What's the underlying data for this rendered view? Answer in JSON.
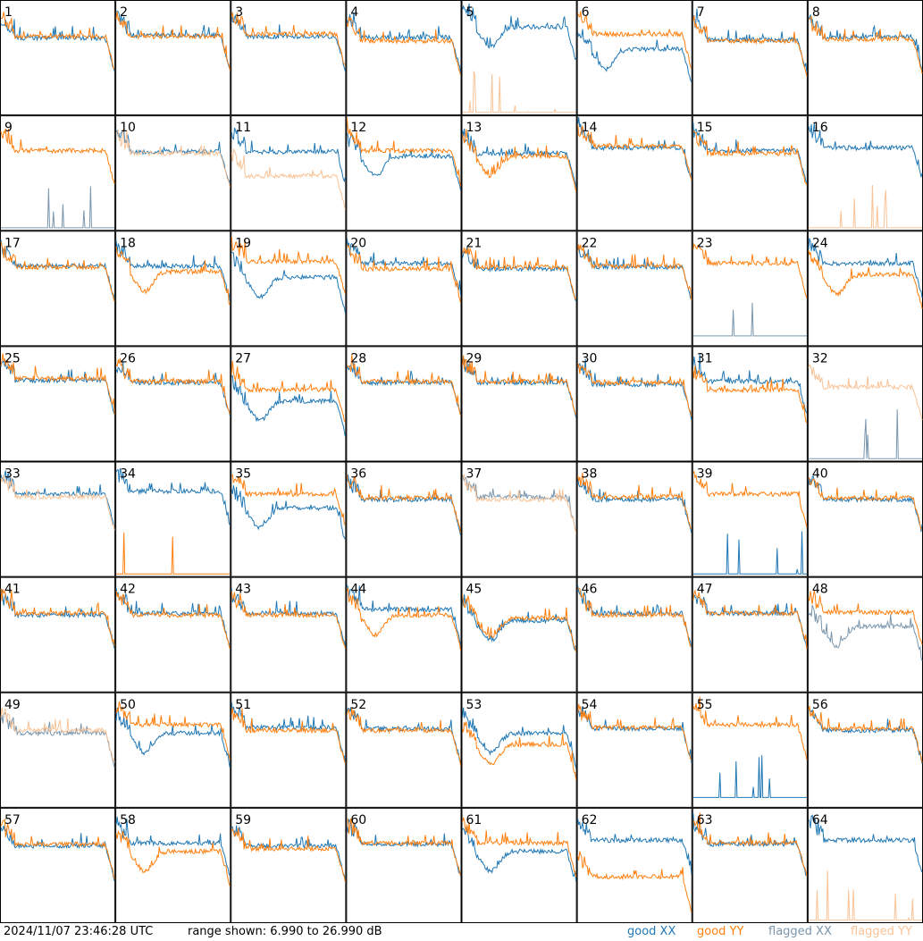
{
  "footer": {
    "timestamp": "2024/11/07 23:46:28 UTC",
    "range": "range shown: 6.990 to 26.990 dB",
    "legend": {
      "good_xx": "good XX",
      "good_yy": "good YY",
      "flagged_xx": "flagged XX",
      "flagged_yy": "flagged YY"
    }
  },
  "colors": {
    "good_xx": "#1f77b4",
    "good_yy": "#ff7f0e",
    "flagged_xx": "#7a96ad",
    "flagged_yy": "#f9c397"
  },
  "chart_data": {
    "type": "line",
    "panel_count": 64,
    "grid": "8x8",
    "ylim": [
      6.99,
      26.99
    ],
    "y_unit": "dB",
    "panels": [
      {
        "id": "1",
        "xx": {
          "flag": false,
          "shape": "normal",
          "level": 20.5
        },
        "yy": {
          "flag": false,
          "shape": "normal",
          "level": 20.8
        }
      },
      {
        "id": "2",
        "xx": {
          "flag": false,
          "shape": "normal",
          "level": 21.0
        },
        "yy": {
          "flag": false,
          "shape": "normal",
          "level": 20.8
        }
      },
      {
        "id": "3",
        "xx": {
          "flag": false,
          "shape": "normal",
          "level": 20.8
        },
        "yy": {
          "flag": false,
          "shape": "normal",
          "level": 21.2
        }
      },
      {
        "id": "4",
        "xx": {
          "flag": false,
          "shape": "normal",
          "level": 20.6
        },
        "yy": {
          "flag": false,
          "shape": "normal",
          "level": 20.0
        }
      },
      {
        "id": "5",
        "xx": {
          "flag": false,
          "shape": "dip",
          "level": 22.5
        },
        "yy": {
          "flag": true,
          "shape": "spikes",
          "level": 7.2
        }
      },
      {
        "id": "6",
        "xx": {
          "flag": false,
          "shape": "dip",
          "level": 18.5
        },
        "yy": {
          "flag": false,
          "shape": "normal",
          "level": 21.2
        }
      },
      {
        "id": "7",
        "xx": {
          "flag": false,
          "shape": "normal",
          "level": 20.2
        },
        "yy": {
          "flag": false,
          "shape": "normal",
          "level": 20.0
        }
      },
      {
        "id": "8",
        "xx": {
          "flag": false,
          "shape": "normal",
          "level": 20.7
        },
        "yy": {
          "flag": false,
          "shape": "normal",
          "level": 20.3
        }
      },
      {
        "id": "9",
        "xx": {
          "flag": true,
          "shape": "spikes",
          "level": 7.2
        },
        "yy": {
          "flag": false,
          "shape": "normal",
          "level": 21.0
        }
      },
      {
        "id": "10",
        "xx": {
          "flag": false,
          "shape": "normal",
          "level": 20.8
        },
        "yy": {
          "flag": true,
          "shape": "normal",
          "level": 20.5
        }
      },
      {
        "id": "11",
        "xx": {
          "flag": false,
          "shape": "normal",
          "level": 20.8
        },
        "yy": {
          "flag": true,
          "shape": "low",
          "level": 18.5
        }
      },
      {
        "id": "12",
        "xx": {
          "flag": false,
          "shape": "dip",
          "level": 20.0
        },
        "yy": {
          "flag": false,
          "shape": "normal",
          "level": 21.0
        }
      },
      {
        "id": "13",
        "xx": {
          "flag": false,
          "shape": "normal",
          "level": 20.5
        },
        "yy": {
          "flag": false,
          "shape": "dip",
          "level": 20.0
        }
      },
      {
        "id": "14",
        "xx": {
          "flag": false,
          "shape": "normal",
          "level": 21.5
        },
        "yy": {
          "flag": false,
          "shape": "normal",
          "level": 21.8
        }
      },
      {
        "id": "15",
        "xx": {
          "flag": false,
          "shape": "normal",
          "level": 21.0
        },
        "yy": {
          "flag": false,
          "shape": "normal",
          "level": 20.5
        }
      },
      {
        "id": "16",
        "xx": {
          "flag": false,
          "shape": "normal",
          "level": 21.5
        },
        "yy": {
          "flag": true,
          "shape": "spikes",
          "level": 7.2
        }
      },
      {
        "id": "17",
        "xx": {
          "flag": false,
          "shape": "normal",
          "level": 21.0
        },
        "yy": {
          "flag": false,
          "shape": "normal",
          "level": 20.8
        }
      },
      {
        "id": "18",
        "xx": {
          "flag": false,
          "shape": "normal",
          "level": 21.0
        },
        "yy": {
          "flag": false,
          "shape": "dip",
          "level": 20.0
        }
      },
      {
        "id": "19",
        "xx": {
          "flag": false,
          "shape": "dip",
          "level": 19.0
        },
        "yy": {
          "flag": false,
          "shape": "normal",
          "level": 21.8
        }
      },
      {
        "id": "20",
        "xx": {
          "flag": false,
          "shape": "normal",
          "level": 21.5
        },
        "yy": {
          "flag": false,
          "shape": "normal",
          "level": 20.5
        }
      },
      {
        "id": "21",
        "xx": {
          "flag": false,
          "shape": "normal",
          "level": 20.5
        },
        "yy": {
          "flag": false,
          "shape": "normal",
          "level": 20.8
        }
      },
      {
        "id": "22",
        "xx": {
          "flag": false,
          "shape": "normal",
          "level": 20.8
        },
        "yy": {
          "flag": false,
          "shape": "normal",
          "level": 21.0
        }
      },
      {
        "id": "23",
        "xx": {
          "flag": true,
          "shape": "spikes",
          "level": 8.5
        },
        "yy": {
          "flag": false,
          "shape": "normal",
          "level": 21.5
        }
      },
      {
        "id": "24",
        "xx": {
          "flag": false,
          "shape": "normal",
          "level": 21.5
        },
        "yy": {
          "flag": false,
          "shape": "dip",
          "level": 19.5
        }
      },
      {
        "id": "25",
        "xx": {
          "flag": false,
          "shape": "normal",
          "level": 21.2
        },
        "yy": {
          "flag": false,
          "shape": "normal",
          "level": 21.5
        }
      },
      {
        "id": "26",
        "xx": {
          "flag": false,
          "shape": "normal",
          "level": 20.8
        },
        "yy": {
          "flag": false,
          "shape": "normal",
          "level": 21.0
        }
      },
      {
        "id": "27",
        "xx": {
          "flag": false,
          "shape": "dip",
          "level": 17.5
        },
        "yy": {
          "flag": false,
          "shape": "normal",
          "level": 19.5
        }
      },
      {
        "id": "28",
        "xx": {
          "flag": false,
          "shape": "normal",
          "level": 20.8
        },
        "yy": {
          "flag": false,
          "shape": "normal",
          "level": 21.0
        }
      },
      {
        "id": "29",
        "xx": {
          "flag": false,
          "shape": "normal",
          "level": 20.8
        },
        "yy": {
          "flag": false,
          "shape": "normal",
          "level": 21.0
        }
      },
      {
        "id": "30",
        "xx": {
          "flag": false,
          "shape": "normal",
          "level": 20.5
        },
        "yy": {
          "flag": false,
          "shape": "normal",
          "level": 20.8
        }
      },
      {
        "id": "31",
        "xx": {
          "flag": false,
          "shape": "normal",
          "level": 21.0
        },
        "yy": {
          "flag": false,
          "shape": "normal",
          "level": 19.5
        }
      },
      {
        "id": "32",
        "xx": {
          "flag": true,
          "shape": "spikes",
          "level": 7.2
        },
        "yy": {
          "flag": true,
          "shape": "normal",
          "level": 20.0
        }
      },
      {
        "id": "33",
        "xx": {
          "flag": false,
          "shape": "normal",
          "level": 21.5
        },
        "yy": {
          "flag": true,
          "shape": "normal",
          "level": 21.0
        }
      },
      {
        "id": "34",
        "xx": {
          "flag": false,
          "shape": "normal",
          "level": 22.0
        },
        "yy": {
          "flag": false,
          "shape": "spikes",
          "level": 7.2
        }
      },
      {
        "id": "35",
        "xx": {
          "flag": false,
          "shape": "dip",
          "level": 19.0
        },
        "yy": {
          "flag": false,
          "shape": "normal",
          "level": 21.5
        }
      },
      {
        "id": "36",
        "xx": {
          "flag": false,
          "shape": "normal",
          "level": 20.5
        },
        "yy": {
          "flag": false,
          "shape": "normal",
          "level": 20.8
        }
      },
      {
        "id": "37",
        "xx": {
          "flag": true,
          "shape": "normal",
          "level": 21.0
        },
        "yy": {
          "flag": true,
          "shape": "normal",
          "level": 20.5
        }
      },
      {
        "id": "38",
        "xx": {
          "flag": false,
          "shape": "normal",
          "level": 20.5
        },
        "yy": {
          "flag": false,
          "shape": "normal",
          "level": 21.0
        }
      },
      {
        "id": "39",
        "xx": {
          "flag": false,
          "shape": "spikes",
          "level": 7.2
        },
        "yy": {
          "flag": false,
          "shape": "normal",
          "level": 21.5
        }
      },
      {
        "id": "40",
        "xx": {
          "flag": false,
          "shape": "normal",
          "level": 20.5
        },
        "yy": {
          "flag": false,
          "shape": "normal",
          "level": 20.8
        }
      },
      {
        "id": "41",
        "xx": {
          "flag": false,
          "shape": "normal",
          "level": 20.5
        },
        "yy": {
          "flag": false,
          "shape": "normal",
          "level": 20.8
        }
      },
      {
        "id": "42",
        "xx": {
          "flag": false,
          "shape": "normal",
          "level": 20.8
        },
        "yy": {
          "flag": false,
          "shape": "normal",
          "level": 20.5
        }
      },
      {
        "id": "43",
        "xx": {
          "flag": false,
          "shape": "normal",
          "level": 20.8
        },
        "yy": {
          "flag": false,
          "shape": "normal",
          "level": 20.5
        }
      },
      {
        "id": "44",
        "xx": {
          "flag": false,
          "shape": "normal",
          "level": 21.5
        },
        "yy": {
          "flag": false,
          "shape": "dip",
          "level": 20.5
        }
      },
      {
        "id": "45",
        "xx": {
          "flag": false,
          "shape": "dip",
          "level": 19.5
        },
        "yy": {
          "flag": false,
          "shape": "dip",
          "level": 20.0
        }
      },
      {
        "id": "46",
        "xx": {
          "flag": false,
          "shape": "normal",
          "level": 20.8
        },
        "yy": {
          "flag": false,
          "shape": "normal",
          "level": 20.5
        }
      },
      {
        "id": "47",
        "xx": {
          "flag": false,
          "shape": "normal",
          "level": 20.8
        },
        "yy": {
          "flag": false,
          "shape": "normal",
          "level": 20.8
        }
      },
      {
        "id": "48",
        "xx": {
          "flag": true,
          "shape": "dip",
          "level": 18.5
        },
        "yy": {
          "flag": false,
          "shape": "normal",
          "level": 21.0
        }
      },
      {
        "id": "49",
        "xx": {
          "flag": true,
          "shape": "normal",
          "level": 20.0
        },
        "yy": {
          "flag": true,
          "shape": "normal",
          "level": 20.5
        }
      },
      {
        "id": "50",
        "xx": {
          "flag": false,
          "shape": "dip",
          "level": 20.0
        },
        "yy": {
          "flag": false,
          "shape": "normal",
          "level": 21.5
        }
      },
      {
        "id": "51",
        "xx": {
          "flag": false,
          "shape": "normal",
          "level": 21.0
        },
        "yy": {
          "flag": false,
          "shape": "normal",
          "level": 20.5
        }
      },
      {
        "id": "52",
        "xx": {
          "flag": false,
          "shape": "normal",
          "level": 20.8
        },
        "yy": {
          "flag": false,
          "shape": "normal",
          "level": 20.5
        }
      },
      {
        "id": "53",
        "xx": {
          "flag": false,
          "shape": "dip",
          "level": 20.0
        },
        "yy": {
          "flag": false,
          "shape": "dip",
          "level": 18.0
        }
      },
      {
        "id": "54",
        "xx": {
          "flag": false,
          "shape": "normal",
          "level": 20.8
        },
        "yy": {
          "flag": false,
          "shape": "normal",
          "level": 21.0
        }
      },
      {
        "id": "55",
        "xx": {
          "flag": false,
          "shape": "spikes",
          "level": 8.5
        },
        "yy": {
          "flag": false,
          "shape": "normal",
          "level": 21.5
        }
      },
      {
        "id": "56",
        "xx": {
          "flag": false,
          "shape": "normal",
          "level": 20.5
        },
        "yy": {
          "flag": false,
          "shape": "normal",
          "level": 20.8
        }
      },
      {
        "id": "57",
        "xx": {
          "flag": false,
          "shape": "normal",
          "level": 20.5
        },
        "yy": {
          "flag": false,
          "shape": "normal",
          "level": 20.8
        }
      },
      {
        "id": "58",
        "xx": {
          "flag": false,
          "shape": "normal",
          "level": 21.0
        },
        "yy": {
          "flag": false,
          "shape": "dip",
          "level": 19.5
        }
      },
      {
        "id": "59",
        "xx": {
          "flag": false,
          "shape": "normal",
          "level": 20.5
        },
        "yy": {
          "flag": false,
          "shape": "normal",
          "level": 20.0
        }
      },
      {
        "id": "60",
        "xx": {
          "flag": false,
          "shape": "normal",
          "level": 20.8
        },
        "yy": {
          "flag": false,
          "shape": "normal",
          "level": 21.0
        }
      },
      {
        "id": "61",
        "xx": {
          "flag": false,
          "shape": "dip",
          "level": 19.5
        },
        "yy": {
          "flag": false,
          "shape": "normal",
          "level": 21.0
        }
      },
      {
        "id": "62",
        "xx": {
          "flag": false,
          "shape": "normal",
          "level": 21.5
        },
        "yy": {
          "flag": false,
          "shape": "low",
          "level": 17.0
        }
      },
      {
        "id": "63",
        "xx": {
          "flag": false,
          "shape": "normal",
          "level": 20.8
        },
        "yy": {
          "flag": false,
          "shape": "normal",
          "level": 21.0
        }
      },
      {
        "id": "64",
        "xx": {
          "flag": false,
          "shape": "normal",
          "level": 21.5
        },
        "yy": {
          "flag": true,
          "shape": "spikes",
          "level": 7.2
        }
      }
    ]
  }
}
